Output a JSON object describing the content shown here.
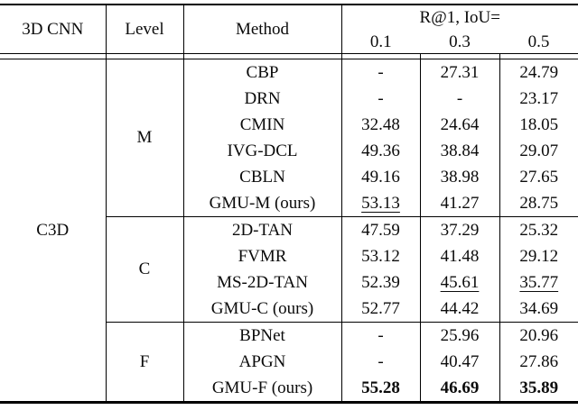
{
  "table": {
    "header": {
      "cnn": "3D CNN",
      "level": "Level",
      "method": "Method",
      "group": "R@1, IoU=",
      "thresholds": [
        "0.1",
        "0.3",
        "0.5"
      ]
    },
    "cnn_label": "C3D",
    "sections": [
      {
        "level": "M",
        "rows": [
          {
            "method": "CBP",
            "values": [
              "-",
              "27.31",
              "24.79"
            ],
            "emphasis": [
              "none",
              "none",
              "none"
            ]
          },
          {
            "method": "DRN",
            "values": [
              "-",
              "-",
              "23.17"
            ],
            "emphasis": [
              "none",
              "none",
              "none"
            ]
          },
          {
            "method": "CMIN",
            "values": [
              "32.48",
              "24.64",
              "18.05"
            ],
            "emphasis": [
              "none",
              "none",
              "none"
            ]
          },
          {
            "method": "IVG-DCL",
            "values": [
              "49.36",
              "38.84",
              "29.07"
            ],
            "emphasis": [
              "none",
              "none",
              "none"
            ]
          },
          {
            "method": "CBLN",
            "values": [
              "49.16",
              "38.98",
              "27.65"
            ],
            "emphasis": [
              "none",
              "none",
              "none"
            ]
          },
          {
            "method": "GMU-M (ours)",
            "values": [
              "53.13",
              "41.27",
              "28.75"
            ],
            "emphasis": [
              "underline",
              "none",
              "none"
            ]
          }
        ]
      },
      {
        "level": "C",
        "rows": [
          {
            "method": "2D-TAN",
            "values": [
              "47.59",
              "37.29",
              "25.32"
            ],
            "emphasis": [
              "none",
              "none",
              "none"
            ]
          },
          {
            "method": "FVMR",
            "values": [
              "53.12",
              "41.48",
              "29.12"
            ],
            "emphasis": [
              "none",
              "none",
              "none"
            ]
          },
          {
            "method": "MS-2D-TAN",
            "values": [
              "52.39",
              "45.61",
              "35.77"
            ],
            "emphasis": [
              "none",
              "underline",
              "underline"
            ]
          },
          {
            "method": "GMU-C (ours)",
            "values": [
              "52.77",
              "44.42",
              "34.69"
            ],
            "emphasis": [
              "none",
              "none",
              "none"
            ]
          }
        ]
      },
      {
        "level": "F",
        "rows": [
          {
            "method": "BPNet",
            "values": [
              "-",
              "25.96",
              "20.96"
            ],
            "emphasis": [
              "none",
              "none",
              "none"
            ]
          },
          {
            "method": "APGN",
            "values": [
              "-",
              "40.47",
              "27.86"
            ],
            "emphasis": [
              "none",
              "none",
              "none"
            ]
          },
          {
            "method": "GMU-F (ours)",
            "values": [
              "55.28",
              "46.69",
              "35.89"
            ],
            "emphasis": [
              "bold",
              "bold",
              "bold"
            ]
          }
        ]
      }
    ]
  }
}
